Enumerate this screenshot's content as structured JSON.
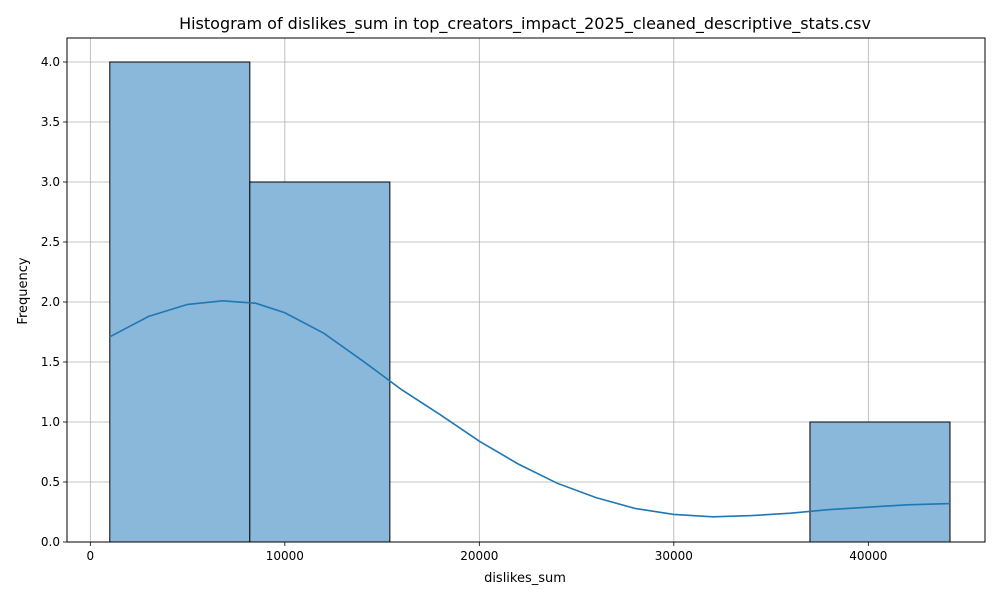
{
  "chart_data": {
    "type": "bar",
    "title": "Histogram of dislikes_sum in top_creators_impact_2025_cleaned_descriptive_stats.csv",
    "xlabel": "dislikes_sum",
    "ylabel": "Frequency",
    "xlim": [
      -1200,
      46000
    ],
    "ylim": [
      0,
      4.2
    ],
    "xticks": [
      0,
      10000,
      20000,
      30000,
      40000
    ],
    "xtick_labels": [
      "0",
      "10000",
      "20000",
      "30000",
      "40000"
    ],
    "yticks": [
      0.0,
      0.5,
      1.0,
      1.5,
      2.0,
      2.5,
      3.0,
      3.5,
      4.0
    ],
    "ytick_labels": [
      "0.0",
      "0.5",
      "1.0",
      "1.5",
      "2.0",
      "2.5",
      "3.0",
      "3.5",
      "4.0"
    ],
    "grid": true,
    "bar_color": "#8ab8da",
    "bar_edge_color": "#000000",
    "kde_color": "#1f77b4",
    "bins": [
      {
        "x0": 1000,
        "x1": 8200,
        "count": 4
      },
      {
        "x0": 8200,
        "x1": 15400,
        "count": 3
      },
      {
        "x0": 15400,
        "x1": 22600,
        "count": 0
      },
      {
        "x0": 22600,
        "x1": 29800,
        "count": 0
      },
      {
        "x0": 29800,
        "x1": 37000,
        "count": 0
      },
      {
        "x0": 37000,
        "x1": 44200,
        "count": 1
      }
    ],
    "kde_series": {
      "x": [
        1000,
        3000,
        5000,
        6800,
        8500,
        10000,
        12000,
        14000,
        16000,
        18000,
        20000,
        22000,
        24000,
        26000,
        28000,
        30000,
        32000,
        34000,
        36000,
        38000,
        40000,
        42000,
        44200
      ],
      "y": [
        1.71,
        1.88,
        1.98,
        2.01,
        1.99,
        1.91,
        1.74,
        1.51,
        1.27,
        1.06,
        0.84,
        0.65,
        0.49,
        0.37,
        0.28,
        0.23,
        0.21,
        0.22,
        0.24,
        0.27,
        0.29,
        0.31,
        0.32
      ]
    }
  }
}
